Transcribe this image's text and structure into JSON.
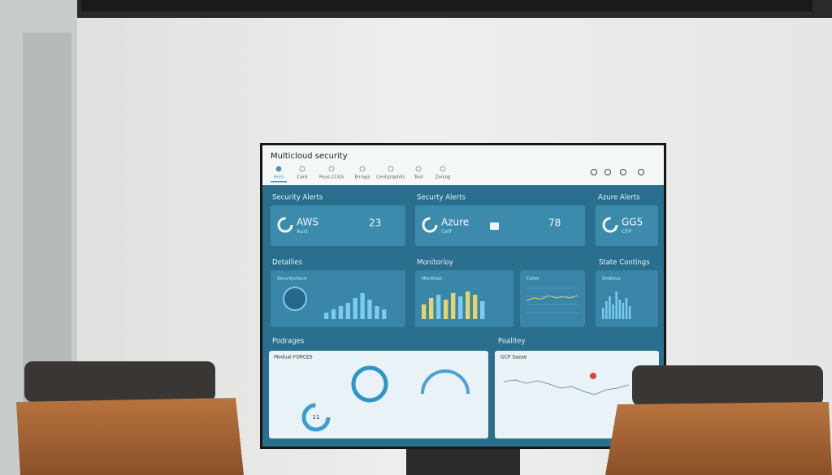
{
  "header": {
    "title": "Multicloud security",
    "tabs": [
      "Hom",
      "Card",
      "Pous CCGS",
      "Enrags",
      "Centgraphits",
      "Tool",
      "Zoniog"
    ]
  },
  "alerts": {
    "labels": [
      "Security Alerts",
      "Securty Alerts",
      "Azure Alerts"
    ],
    "cards": [
      {
        "name": "AWS",
        "sub": "Aurt",
        "count": 23
      },
      {
        "name": "Azure",
        "sub": "Celf",
        "count": 78
      },
      {
        "name": "GG5",
        "sub": "CFP"
      }
    ]
  },
  "details": {
    "labels": [
      "Detallies",
      "Monitorioy",
      "State Contings"
    ],
    "panels": [
      {
        "title": "Securtycloud",
        "bars": [
          8,
          12,
          16,
          20,
          26,
          32,
          24,
          16,
          12
        ]
      },
      {
        "title": "Monltoas",
        "bars": [
          18,
          26,
          30,
          24,
          32,
          28,
          34,
          30,
          22
        ]
      },
      {
        "title": "Celoe",
        "line": [
          20,
          22,
          21,
          24,
          22,
          23,
          22,
          24
        ]
      },
      {
        "title": "Sesbsus",
        "bars": [
          14,
          22,
          28,
          18,
          34,
          24,
          20,
          26,
          16
        ]
      }
    ]
  },
  "bottom": {
    "labels": [
      "Podrages",
      "Poalitey"
    ],
    "panels": [
      {
        "title": "Modual FORCES",
        "gauge": 11
      },
      {
        "title": "GCP Sazae",
        "line": [
          30,
          32,
          28,
          31,
          27,
          22,
          24,
          18,
          14,
          20,
          22,
          26
        ]
      }
    ]
  }
}
